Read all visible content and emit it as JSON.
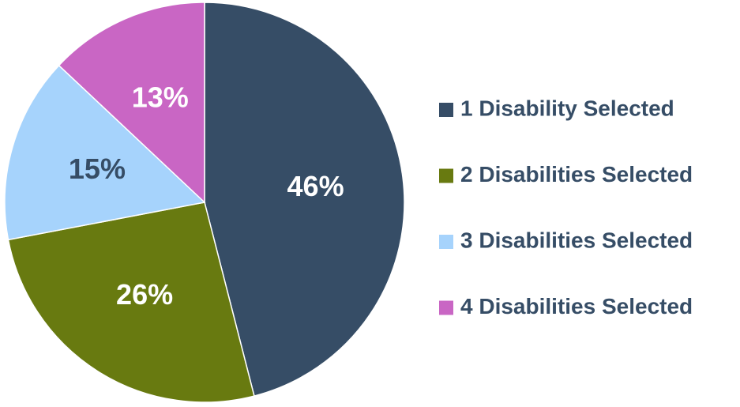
{
  "chart_data": {
    "type": "pie",
    "categories": [
      "1 Disability Selected",
      "2 Disabilities Selected",
      "3 Disabilities Selected",
      "4 Disabilities Selected"
    ],
    "values": [
      46,
      26,
      15,
      13
    ],
    "value_labels": [
      "46%",
      "26%",
      "15%",
      "13%"
    ],
    "colors": [
      "#364d66",
      "#687a10",
      "#a6d3fc",
      "#c966c4"
    ],
    "legend": "right"
  }
}
